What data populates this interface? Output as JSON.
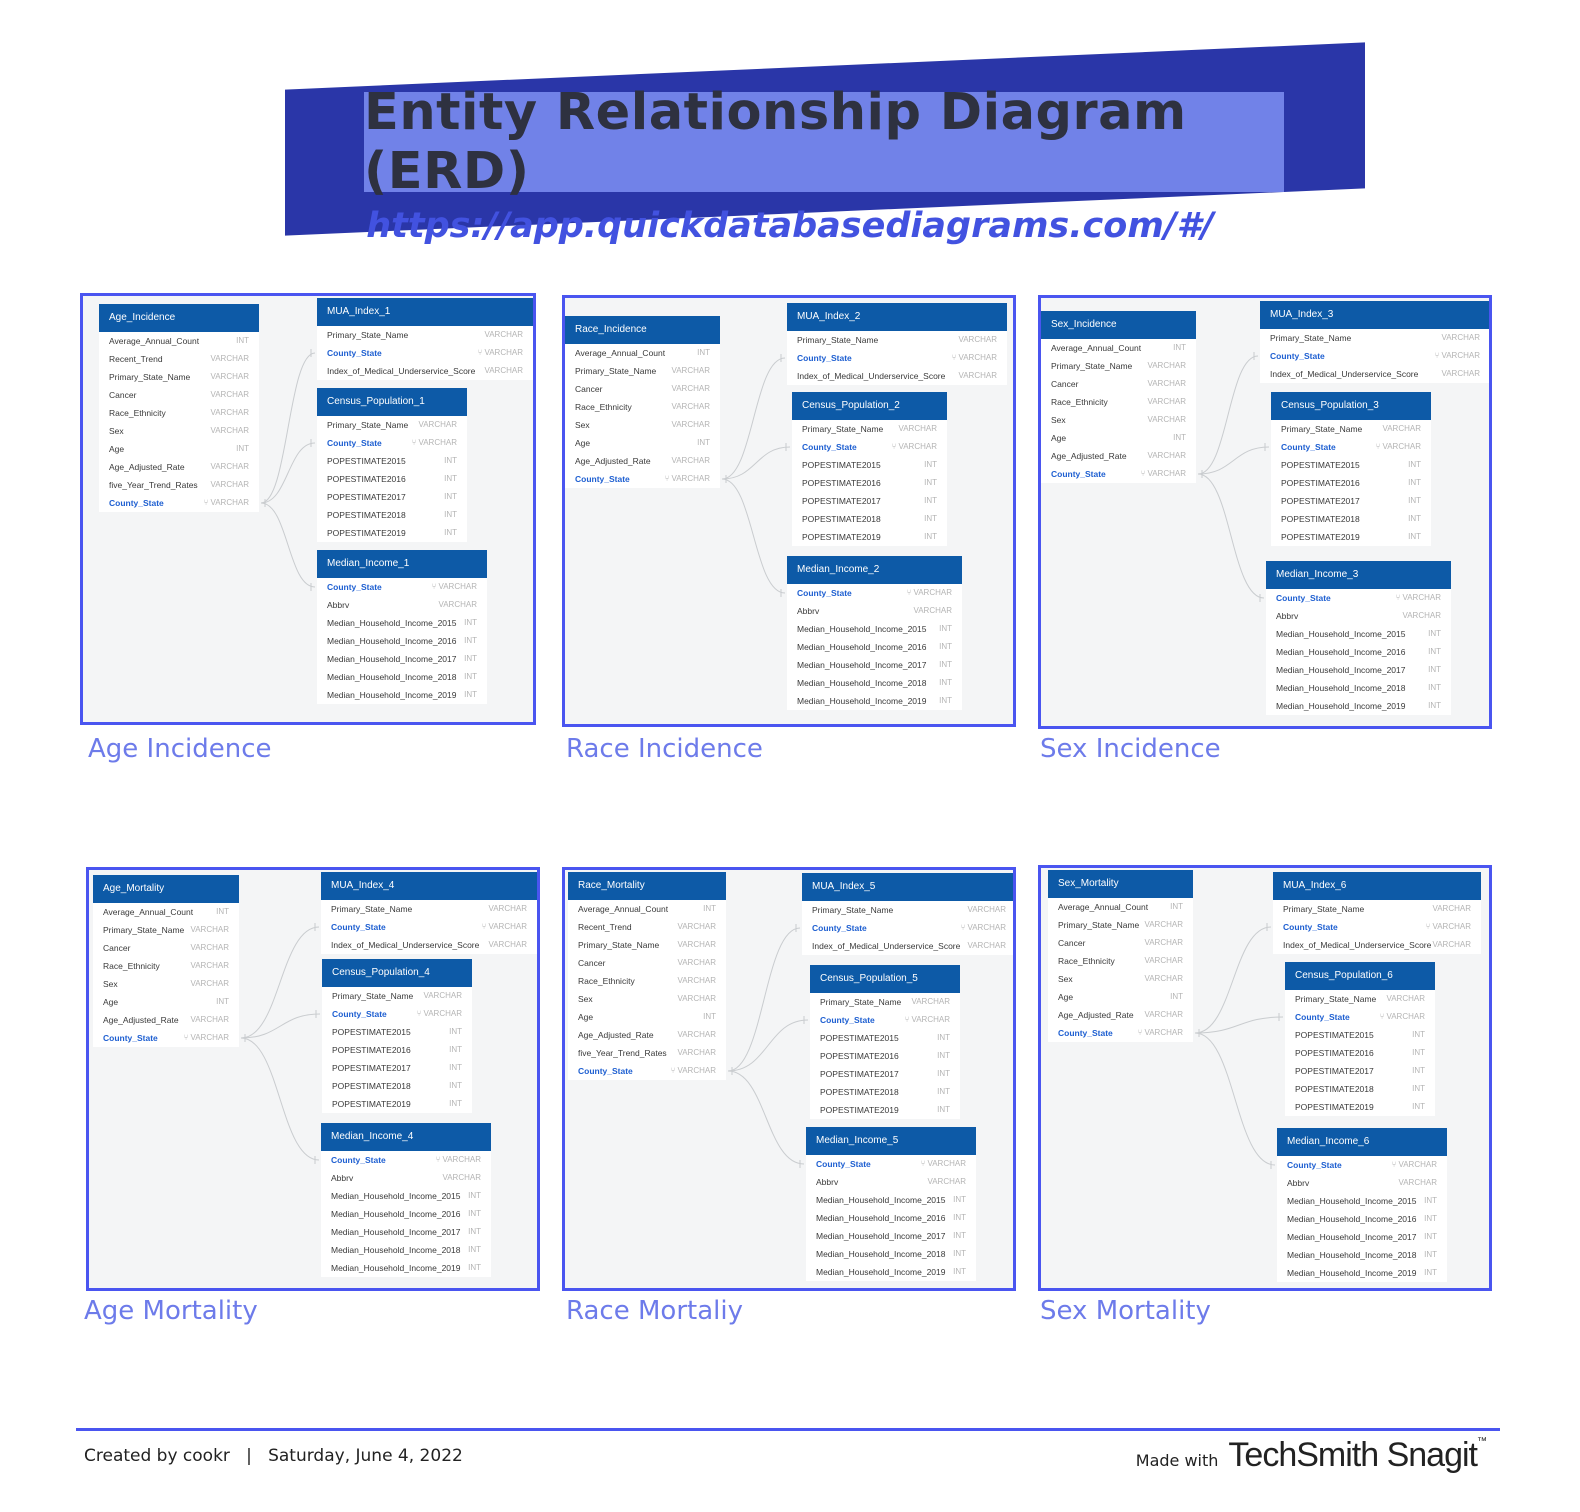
{
  "title": "Entity Relationship Diagram (ERD)",
  "url": "https://app.quickdatabasediagrams.com/#/",
  "footer": {
    "created": "Created by cookr",
    "separator": "|",
    "date": "Saturday, June 4, 2022",
    "made_with": "Made with",
    "brand": "TechSmith Snagit",
    "trademark": "™"
  },
  "panels": [
    {
      "caption": "Age Incidence",
      "tables": [
        {
          "name": "Age_Incidence",
          "fields": [
            {
              "n": "Average_Annual_Count",
              "t": "INT"
            },
            {
              "n": "Recent_Trend",
              "t": "VARCHAR"
            },
            {
              "n": "Primary_State_Name",
              "t": "VARCHAR"
            },
            {
              "n": "Cancer",
              "t": "VARCHAR"
            },
            {
              "n": "Race_Ethnicity",
              "t": "VARCHAR"
            },
            {
              "n": "Sex",
              "t": "VARCHAR"
            },
            {
              "n": "Age",
              "t": "INT"
            },
            {
              "n": "Age_Adjusted_Rate",
              "t": "VARCHAR"
            },
            {
              "n": "five_Year_Trend_Rates",
              "t": "VARCHAR"
            },
            {
              "n": "County_State",
              "t": "VARCHAR",
              "key": true
            }
          ]
        },
        {
          "name": "MUA_Index_1",
          "fields": [
            {
              "n": "Primary_State_Name",
              "t": "VARCHAR"
            },
            {
              "n": "County_State",
              "t": "VARCHAR",
              "key": true
            },
            {
              "n": "Index_of_Medical_Underservice_Score",
              "t": "VARCHAR"
            }
          ]
        },
        {
          "name": "Census_Population_1",
          "fields": [
            {
              "n": "Primary_State_Name",
              "t": "VARCHAR"
            },
            {
              "n": "County_State",
              "t": "VARCHAR",
              "key": true
            },
            {
              "n": "POPESTIMATE2015",
              "t": "INT"
            },
            {
              "n": "POPESTIMATE2016",
              "t": "INT"
            },
            {
              "n": "POPESTIMATE2017",
              "t": "INT"
            },
            {
              "n": "POPESTIMATE2018",
              "t": "INT"
            },
            {
              "n": "POPESTIMATE2019",
              "t": "INT"
            }
          ]
        },
        {
          "name": "Median_Income_1",
          "fields": [
            {
              "n": "County_State",
              "t": "VARCHAR",
              "key": true
            },
            {
              "n": "Abbrv",
              "t": "VARCHAR"
            },
            {
              "n": "Median_Household_Income_2015",
              "t": "INT"
            },
            {
              "n": "Median_Household_Income_2016",
              "t": "INT"
            },
            {
              "n": "Median_Household_Income_2017",
              "t": "INT"
            },
            {
              "n": "Median_Household_Income_2018",
              "t": "INT"
            },
            {
              "n": "Median_Household_Income_2019",
              "t": "INT"
            }
          ]
        }
      ]
    },
    {
      "caption": "Race Incidence",
      "tables": [
        {
          "name": "Race_Incidence",
          "fields": [
            {
              "n": "Average_Annual_Count",
              "t": "INT"
            },
            {
              "n": "Primary_State_Name",
              "t": "VARCHAR"
            },
            {
              "n": "Cancer",
              "t": "VARCHAR"
            },
            {
              "n": "Race_Ethnicity",
              "t": "VARCHAR"
            },
            {
              "n": "Sex",
              "t": "VARCHAR"
            },
            {
              "n": "Age",
              "t": "INT"
            },
            {
              "n": "Age_Adjusted_Rate",
              "t": "VARCHAR"
            },
            {
              "n": "County_State",
              "t": "VARCHAR",
              "key": true
            }
          ]
        },
        {
          "name": "MUA_Index_2",
          "fields": [
            {
              "n": "Primary_State_Name",
              "t": "VARCHAR"
            },
            {
              "n": "County_State",
              "t": "VARCHAR",
              "key": true
            },
            {
              "n": "Index_of_Medical_Underservice_Score",
              "t": "VARCHAR"
            }
          ]
        },
        {
          "name": "Census_Population_2",
          "fields": [
            {
              "n": "Primary_State_Name",
              "t": "VARCHAR"
            },
            {
              "n": "County_State",
              "t": "VARCHAR",
              "key": true
            },
            {
              "n": "POPESTIMATE2015",
              "t": "INT"
            },
            {
              "n": "POPESTIMATE2016",
              "t": "INT"
            },
            {
              "n": "POPESTIMATE2017",
              "t": "INT"
            },
            {
              "n": "POPESTIMATE2018",
              "t": "INT"
            },
            {
              "n": "POPESTIMATE2019",
              "t": "INT"
            }
          ]
        },
        {
          "name": "Median_Income_2",
          "fields": [
            {
              "n": "County_State",
              "t": "VARCHAR",
              "key": true
            },
            {
              "n": "Abbrv",
              "t": "VARCHAR"
            },
            {
              "n": "Median_Household_Income_2015",
              "t": "INT"
            },
            {
              "n": "Median_Household_Income_2016",
              "t": "INT"
            },
            {
              "n": "Median_Household_Income_2017",
              "t": "INT"
            },
            {
              "n": "Median_Household_Income_2018",
              "t": "INT"
            },
            {
              "n": "Median_Household_Income_2019",
              "t": "INT"
            }
          ]
        }
      ]
    },
    {
      "caption": "Sex Incidence",
      "tables": [
        {
          "name": "Sex_Incidence",
          "fields": [
            {
              "n": "Average_Annual_Count",
              "t": "INT"
            },
            {
              "n": "Primary_State_Name",
              "t": "VARCHAR"
            },
            {
              "n": "Cancer",
              "t": "VARCHAR"
            },
            {
              "n": "Race_Ethnicity",
              "t": "VARCHAR"
            },
            {
              "n": "Sex",
              "t": "VARCHAR"
            },
            {
              "n": "Age",
              "t": "INT"
            },
            {
              "n": "Age_Adjusted_Rate",
              "t": "VARCHAR"
            },
            {
              "n": "County_State",
              "t": "VARCHAR",
              "key": true
            }
          ]
        },
        {
          "name": "MUA_Index_3",
          "fields": [
            {
              "n": "Primary_State_Name",
              "t": "VARCHAR"
            },
            {
              "n": "County_State",
              "t": "VARCHAR",
              "key": true
            },
            {
              "n": "Index_of_Medical_Underservice_Score",
              "t": "VARCHAR"
            }
          ]
        },
        {
          "name": "Census_Population_3",
          "fields": [
            {
              "n": "Primary_State_Name",
              "t": "VARCHAR"
            },
            {
              "n": "County_State",
              "t": "VARCHAR",
              "key": true
            },
            {
              "n": "POPESTIMATE2015",
              "t": "INT"
            },
            {
              "n": "POPESTIMATE2016",
              "t": "INT"
            },
            {
              "n": "POPESTIMATE2017",
              "t": "INT"
            },
            {
              "n": "POPESTIMATE2018",
              "t": "INT"
            },
            {
              "n": "POPESTIMATE2019",
              "t": "INT"
            }
          ]
        },
        {
          "name": "Median_Income_3",
          "fields": [
            {
              "n": "County_State",
              "t": "VARCHAR",
              "key": true
            },
            {
              "n": "Abbrv",
              "t": "VARCHAR"
            },
            {
              "n": "Median_Household_Income_2015",
              "t": "INT"
            },
            {
              "n": "Median_Household_Income_2016",
              "t": "INT"
            },
            {
              "n": "Median_Household_Income_2017",
              "t": "INT"
            },
            {
              "n": "Median_Household_Income_2018",
              "t": "INT"
            },
            {
              "n": "Median_Household_Income_2019",
              "t": "INT"
            }
          ]
        }
      ]
    },
    {
      "caption": "Age Mortality",
      "tables": [
        {
          "name": "Age_Mortality",
          "fields": [
            {
              "n": "Average_Annual_Count",
              "t": "INT"
            },
            {
              "n": "Primary_State_Name",
              "t": "VARCHAR"
            },
            {
              "n": "Cancer",
              "t": "VARCHAR"
            },
            {
              "n": "Race_Ethnicity",
              "t": "VARCHAR"
            },
            {
              "n": "Sex",
              "t": "VARCHAR"
            },
            {
              "n": "Age",
              "t": "INT"
            },
            {
              "n": "Age_Adjusted_Rate",
              "t": "VARCHAR"
            },
            {
              "n": "County_State",
              "t": "VARCHAR",
              "key": true
            }
          ]
        },
        {
          "name": "MUA_Index_4",
          "fields": [
            {
              "n": "Primary_State_Name",
              "t": "VARCHAR"
            },
            {
              "n": "County_State",
              "t": "VARCHAR",
              "key": true
            },
            {
              "n": "Index_of_Medical_Underservice_Score",
              "t": "VARCHAR"
            }
          ]
        },
        {
          "name": "Census_Population_4",
          "fields": [
            {
              "n": "Primary_State_Name",
              "t": "VARCHAR"
            },
            {
              "n": "County_State",
              "t": "VARCHAR",
              "key": true
            },
            {
              "n": "POPESTIMATE2015",
              "t": "INT"
            },
            {
              "n": "POPESTIMATE2016",
              "t": "INT"
            },
            {
              "n": "POPESTIMATE2017",
              "t": "INT"
            },
            {
              "n": "POPESTIMATE2018",
              "t": "INT"
            },
            {
              "n": "POPESTIMATE2019",
              "t": "INT"
            }
          ]
        },
        {
          "name": "Median_Income_4",
          "fields": [
            {
              "n": "County_State",
              "t": "VARCHAR",
              "key": true
            },
            {
              "n": "Abbrv",
              "t": "VARCHAR"
            },
            {
              "n": "Median_Household_Income_2015",
              "t": "INT"
            },
            {
              "n": "Median_Household_Income_2016",
              "t": "INT"
            },
            {
              "n": "Median_Household_Income_2017",
              "t": "INT"
            },
            {
              "n": "Median_Household_Income_2018",
              "t": "INT"
            },
            {
              "n": "Median_Household_Income_2019",
              "t": "INT"
            }
          ]
        }
      ]
    },
    {
      "caption": "Race Mortaliy",
      "tables": [
        {
          "name": "Race_Mortality",
          "fields": [
            {
              "n": "Average_Annual_Count",
              "t": "INT"
            },
            {
              "n": "Recent_Trend",
              "t": "VARCHAR"
            },
            {
              "n": "Primary_State_Name",
              "t": "VARCHAR"
            },
            {
              "n": "Cancer",
              "t": "VARCHAR"
            },
            {
              "n": "Race_Ethnicity",
              "t": "VARCHAR"
            },
            {
              "n": "Sex",
              "t": "VARCHAR"
            },
            {
              "n": "Age",
              "t": "INT"
            },
            {
              "n": "Age_Adjusted_Rate",
              "t": "VARCHAR"
            },
            {
              "n": "five_Year_Trend_Rates",
              "t": "VARCHAR"
            },
            {
              "n": "County_State",
              "t": "VARCHAR",
              "key": true
            }
          ]
        },
        {
          "name": "MUA_Index_5",
          "fields": [
            {
              "n": "Primary_State_Name",
              "t": "VARCHAR"
            },
            {
              "n": "County_State",
              "t": "VARCHAR",
              "key": true
            },
            {
              "n": "Index_of_Medical_Underservice_Score",
              "t": "VARCHAR"
            }
          ]
        },
        {
          "name": "Census_Population_5",
          "fields": [
            {
              "n": "Primary_State_Name",
              "t": "VARCHAR"
            },
            {
              "n": "County_State",
              "t": "VARCHAR",
              "key": true
            },
            {
              "n": "POPESTIMATE2015",
              "t": "INT"
            },
            {
              "n": "POPESTIMATE2016",
              "t": "INT"
            },
            {
              "n": "POPESTIMATE2017",
              "t": "INT"
            },
            {
              "n": "POPESTIMATE2018",
              "t": "INT"
            },
            {
              "n": "POPESTIMATE2019",
              "t": "INT"
            }
          ]
        },
        {
          "name": "Median_Income_5",
          "fields": [
            {
              "n": "County_State",
              "t": "VARCHAR",
              "key": true
            },
            {
              "n": "Abbrv",
              "t": "VARCHAR"
            },
            {
              "n": "Median_Household_Income_2015",
              "t": "INT"
            },
            {
              "n": "Median_Household_Income_2016",
              "t": "INT"
            },
            {
              "n": "Median_Household_Income_2017",
              "t": "INT"
            },
            {
              "n": "Median_Household_Income_2018",
              "t": "INT"
            },
            {
              "n": "Median_Household_Income_2019",
              "t": "INT"
            }
          ]
        }
      ]
    },
    {
      "caption": "Sex Mortality",
      "tables": [
        {
          "name": "Sex_Mortality",
          "fields": [
            {
              "n": "Average_Annual_Count",
              "t": "INT"
            },
            {
              "n": "Primary_State_Name",
              "t": "VARCHAR"
            },
            {
              "n": "Cancer",
              "t": "VARCHAR"
            },
            {
              "n": "Race_Ethnicity",
              "t": "VARCHAR"
            },
            {
              "n": "Sex",
              "t": "VARCHAR"
            },
            {
              "n": "Age",
              "t": "INT"
            },
            {
              "n": "Age_Adjusted_Rate",
              "t": "VARCHAR"
            },
            {
              "n": "County_State",
              "t": "VARCHAR",
              "key": true
            }
          ]
        },
        {
          "name": "MUA_Index_6",
          "fields": [
            {
              "n": "Primary_State_Name",
              "t": "VARCHAR"
            },
            {
              "n": "County_State",
              "t": "VARCHAR",
              "key": true
            },
            {
              "n": "Index_of_Medical_Underservice_Score",
              "t": "VARCHAR"
            }
          ]
        },
        {
          "name": "Census_Population_6",
          "fields": [
            {
              "n": "Primary_State_Name",
              "t": "VARCHAR"
            },
            {
              "n": "County_State",
              "t": "VARCHAR",
              "key": true
            },
            {
              "n": "POPESTIMATE2015",
              "t": "INT"
            },
            {
              "n": "POPESTIMATE2016",
              "t": "INT"
            },
            {
              "n": "POPESTIMATE2017",
              "t": "INT"
            },
            {
              "n": "POPESTIMATE2018",
              "t": "INT"
            },
            {
              "n": "POPESTIMATE2019",
              "t": "INT"
            }
          ]
        },
        {
          "name": "Median_Income_6",
          "fields": [
            {
              "n": "County_State",
              "t": "VARCHAR",
              "key": true
            },
            {
              "n": "Abbrv",
              "t": "VARCHAR"
            },
            {
              "n": "Median_Household_Income_2015",
              "t": "INT"
            },
            {
              "n": "Median_Household_Income_2016",
              "t": "INT"
            },
            {
              "n": "Median_Household_Income_2017",
              "t": "INT"
            },
            {
              "n": "Median_Household_Income_2018",
              "t": "INT"
            },
            {
              "n": "Median_Household_Income_2019",
              "t": "INT"
            }
          ]
        }
      ]
    }
  ]
}
